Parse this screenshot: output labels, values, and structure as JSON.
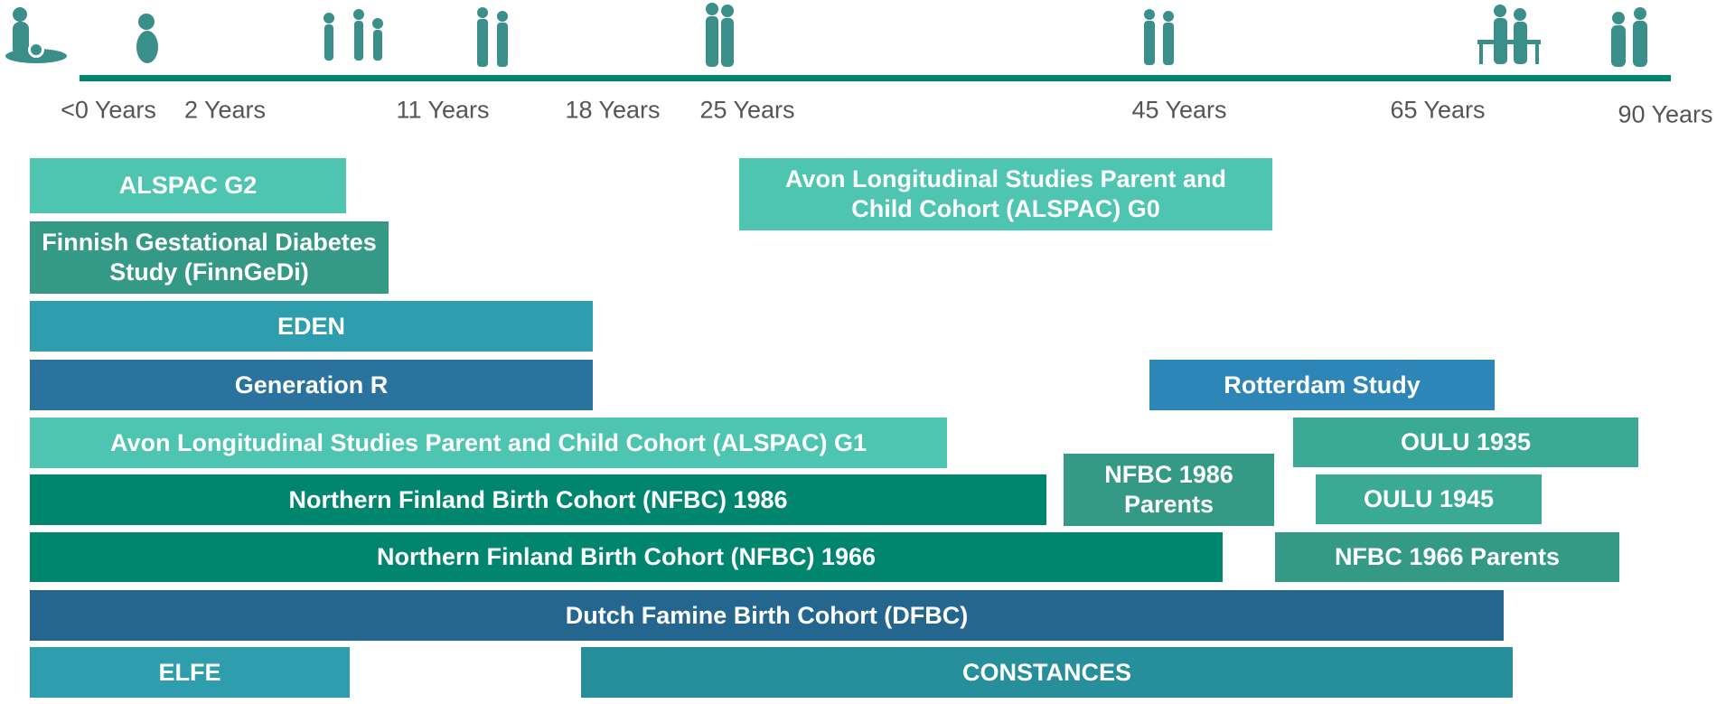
{
  "timeline": {
    "labels": [
      "<0 Years",
      "2 Years",
      "11 Years",
      "18 Years",
      "25 Years",
      "45 Years",
      "65 Years",
      "90 Years"
    ]
  },
  "cohorts": [
    {
      "label": "ALSPAC G2"
    },
    {
      "label": "Avon Longitudinal Studies Parent and Child Cohort (ALSPAC) G0"
    },
    {
      "label": "Finnish Gestational Diabetes Study (FinnGeDi)"
    },
    {
      "label": "EDEN"
    },
    {
      "label": "Generation R"
    },
    {
      "label": "Rotterdam Study"
    },
    {
      "label": "Avon Longitudinal Studies Parent and Child Cohort (ALSPAC) G1"
    },
    {
      "label": "OULU 1935"
    },
    {
      "label": "NFBC 1986 Parents"
    },
    {
      "label": "Northern Finland Birth Cohort (NFBC) 1986"
    },
    {
      "label": "OULU 1945"
    },
    {
      "label": "Northern Finland Birth Cohort (NFBC) 1966"
    },
    {
      "label": "NFBC 1966 Parents"
    },
    {
      "label": "Dutch Famine Birth Cohort (DFBC)"
    },
    {
      "label": "ELFE"
    },
    {
      "label": "CONSTANCES"
    }
  ]
}
